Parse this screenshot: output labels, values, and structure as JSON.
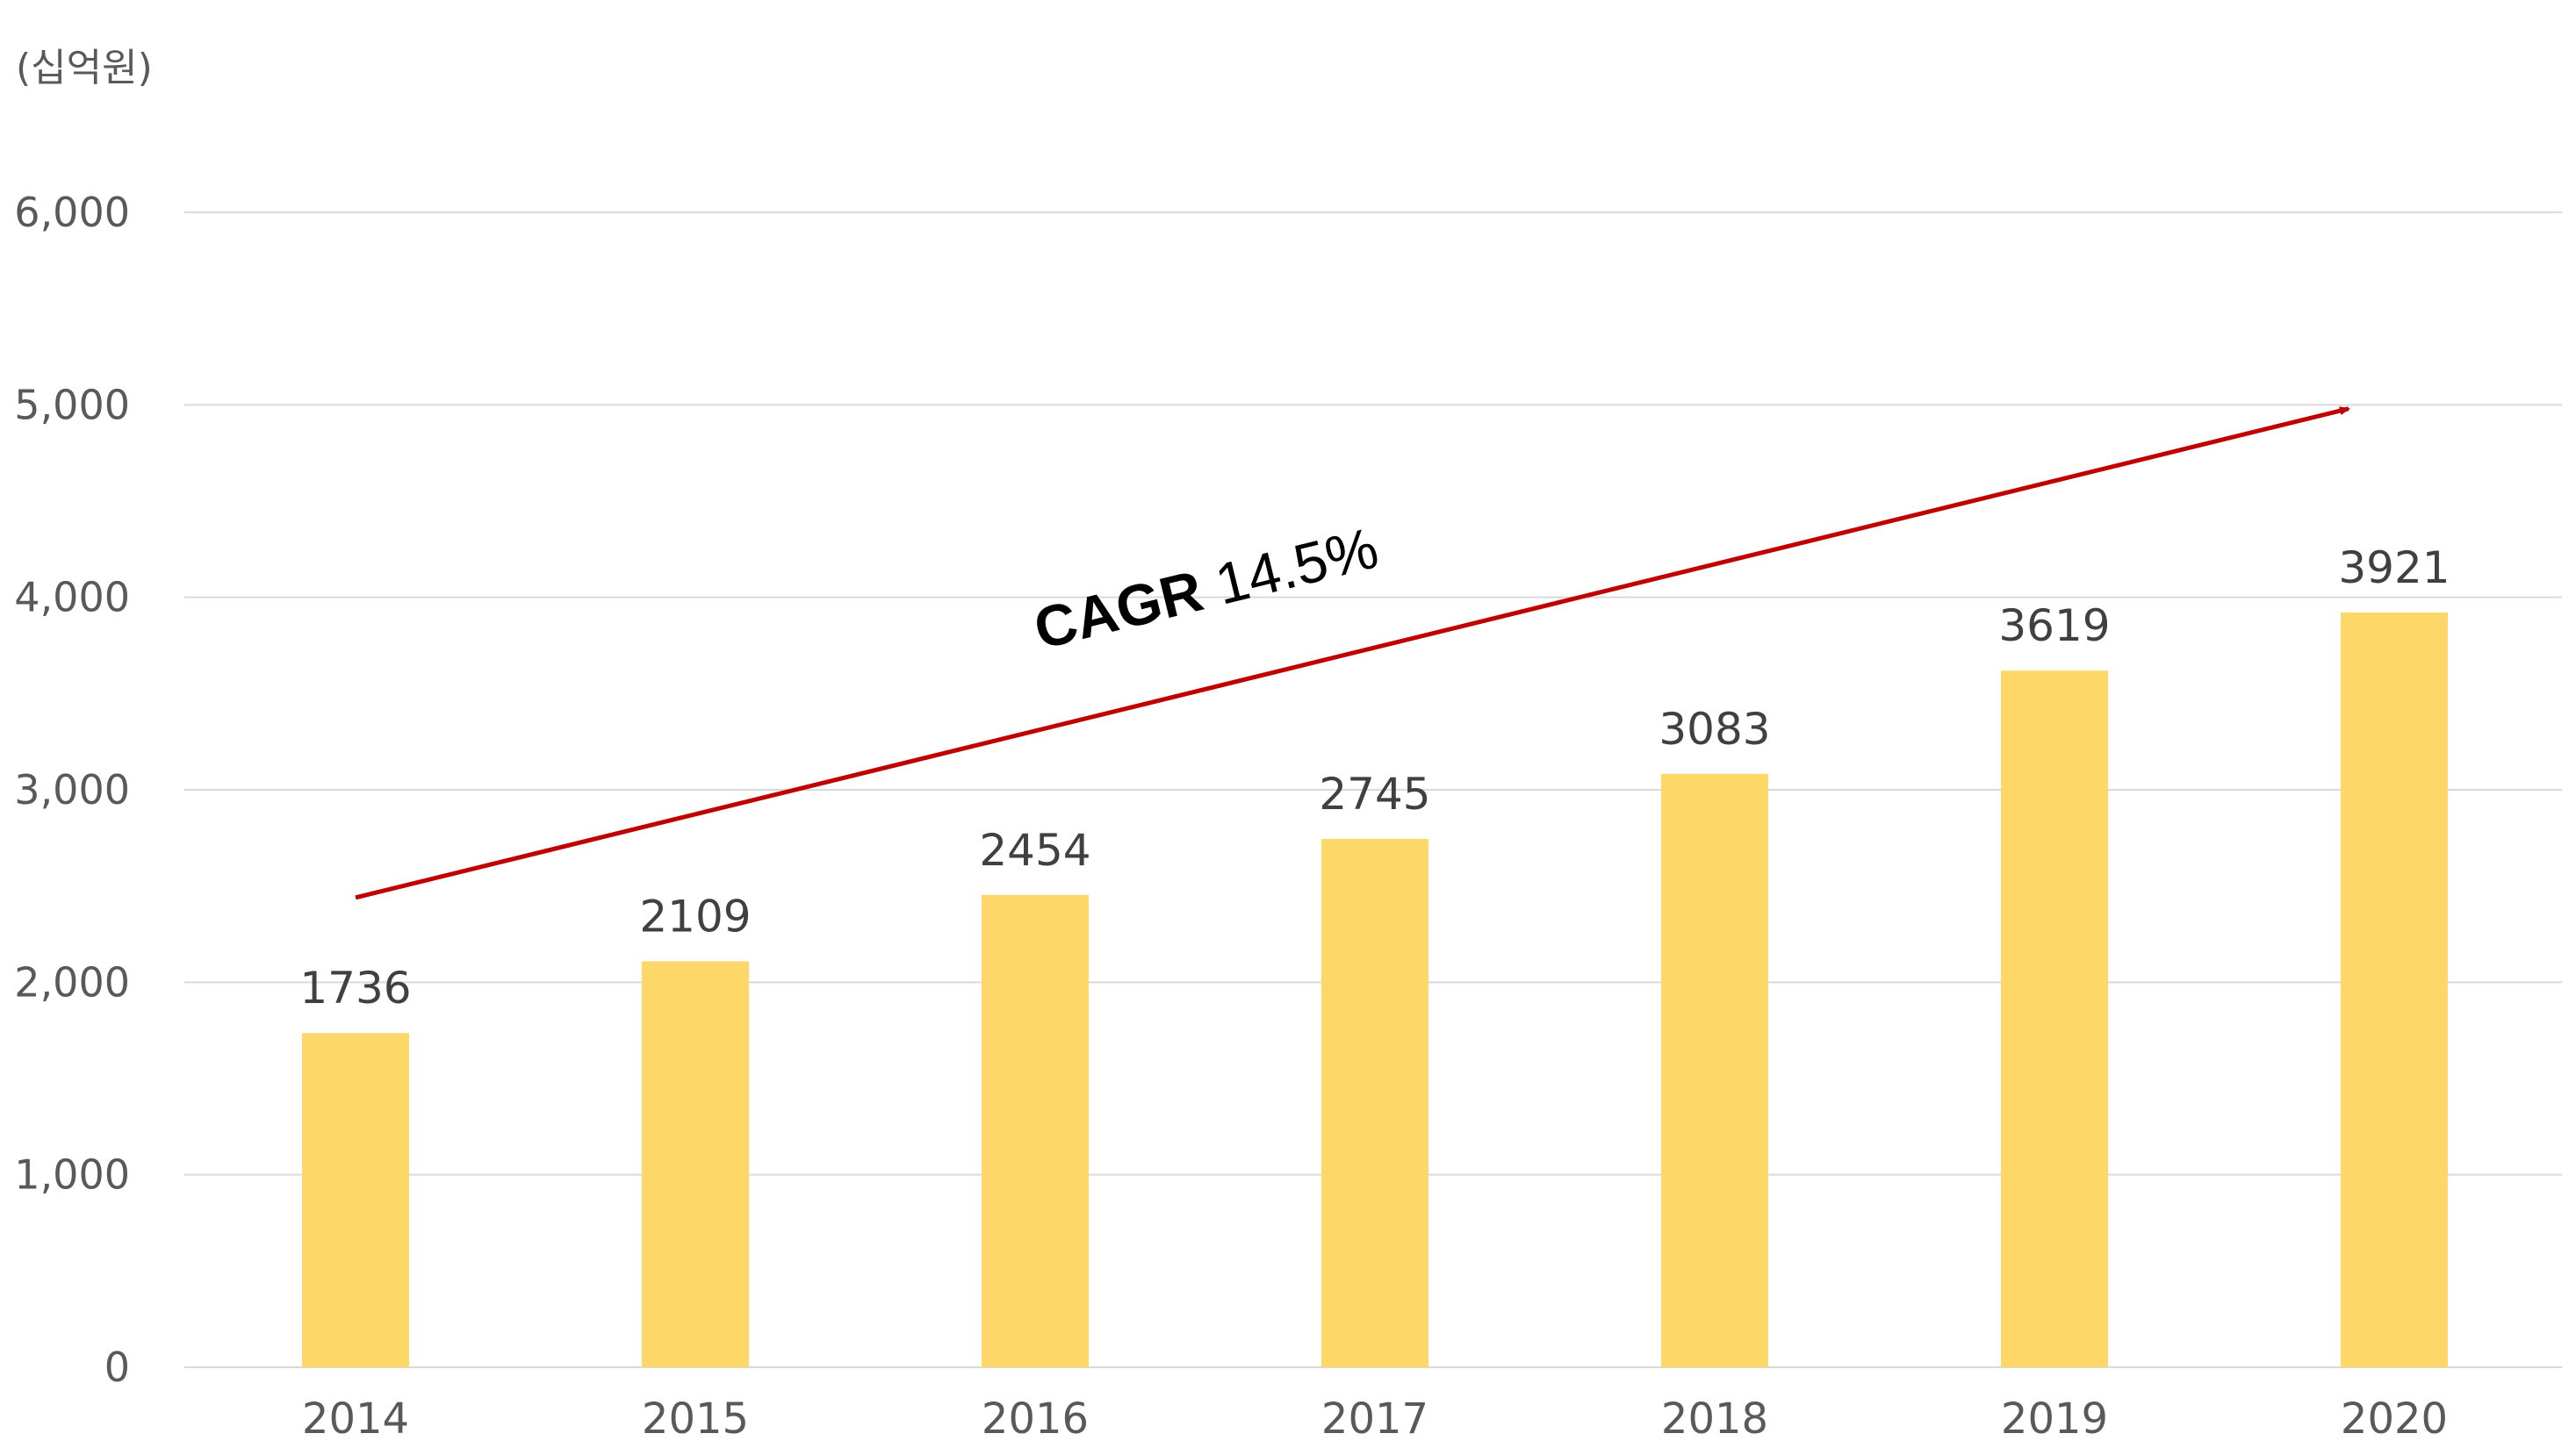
{
  "chart_data": {
    "type": "bar",
    "unit_label": "(십억원)",
    "categories": [
      "2014",
      "2015",
      "2016",
      "2017",
      "2018",
      "2019",
      "2020"
    ],
    "values": [
      1736,
      2109,
      2454,
      2745,
      3083,
      3619,
      3921
    ],
    "data_labels": [
      "1736",
      "2109",
      "2454",
      "2745",
      "3083",
      "3619",
      "3921"
    ],
    "ylim": [
      0,
      6000
    ],
    "yticks": [
      0,
      1000,
      2000,
      3000,
      4000,
      5000,
      6000
    ],
    "ytick_labels": [
      "0",
      "1,000",
      "2,000",
      "3,000",
      "4,000",
      "5,000",
      "6,000"
    ],
    "grid": true,
    "bar_color": "#FDD767",
    "grid_color": "#D9D9D9",
    "axis_label_color": "#595959",
    "annotation": {
      "bold_text": "CAGR",
      "text": " 14.5%",
      "arrow_color": "#C00000",
      "arrow_start": {
        "x": "2014",
        "y": 2440
      },
      "arrow_end": {
        "x": "2020",
        "y": 4980
      }
    }
  }
}
